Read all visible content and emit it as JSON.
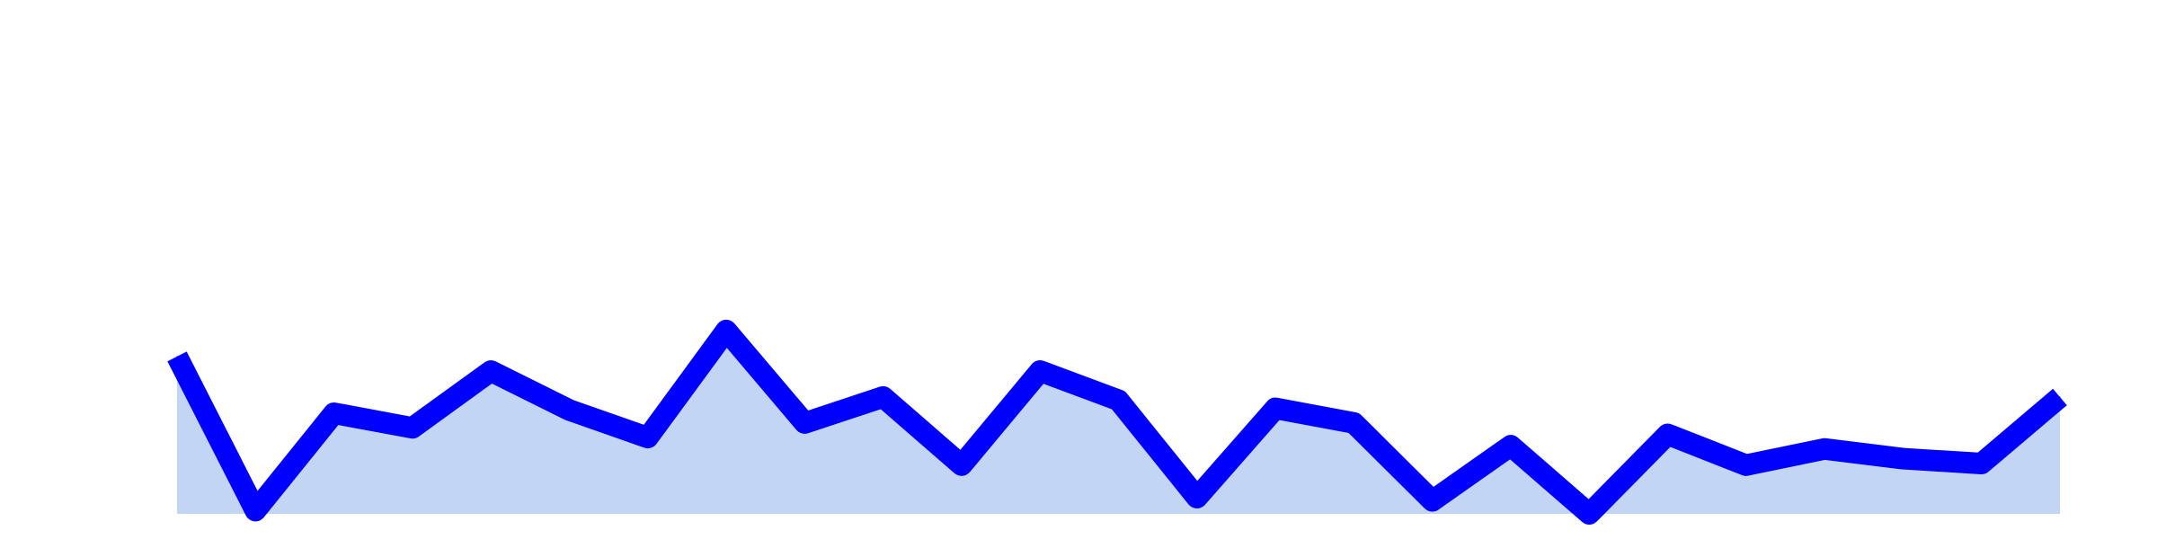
{
  "chart_data": {
    "type": "area",
    "title": "",
    "xlabel": "",
    "ylabel": "",
    "x": [
      0,
      1,
      2,
      3,
      4,
      5,
      6,
      7,
      8,
      9,
      10,
      11,
      12,
      13,
      14,
      15,
      16,
      17,
      18,
      19,
      20,
      21,
      22,
      23,
      24
    ],
    "series": [
      {
        "values": [
          19.4,
          0.4,
          12.4,
          10.6,
          17.6,
          12.8,
          9.4,
          22.6,
          11.2,
          14.4,
          6.0,
          17.6,
          14.0,
          2.0,
          13.0,
          11.2,
          1.6,
          8.4,
          0.0,
          9.8,
          6.0,
          8.0,
          6.8,
          6.2,
          14.4
        ]
      }
    ],
    "xlim": [
      0,
      24
    ],
    "ylim": [
      0,
      62
    ],
    "grid": false,
    "legend": "none",
    "colors": {
      "line": "#0000ff",
      "fill": "#c2d5f5",
      "background": "#ffffff"
    }
  }
}
